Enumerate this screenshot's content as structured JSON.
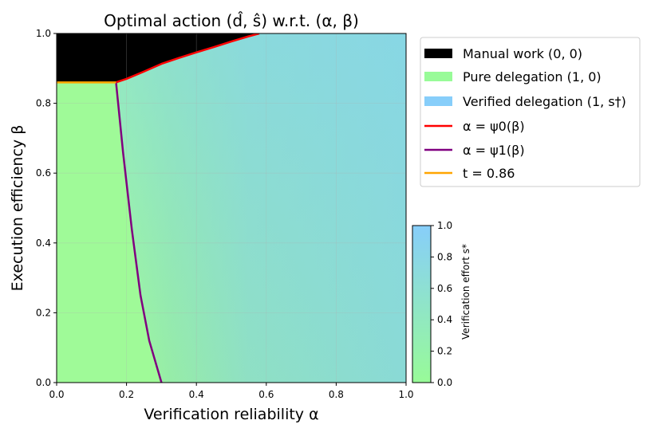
{
  "chart_data": {
    "type": "heatmap",
    "title": "Optimal action (d̂, ŝ) w.r.t. (α, β)",
    "xlabel": "Verification reliability α",
    "ylabel": "Execution efficiency β",
    "xlim": [
      0.0,
      1.0
    ],
    "ylim": [
      0.0,
      1.0
    ],
    "xticks": [
      "0.0",
      "0.2",
      "0.4",
      "0.6",
      "0.8",
      "1.0"
    ],
    "yticks": [
      "0.0",
      "0.2",
      "0.4",
      "0.6",
      "0.8",
      "1.0"
    ],
    "grid": true,
    "regions": [
      {
        "name": "Manual work (0, 0)",
        "color": "#000000"
      },
      {
        "name": "Pure delegation (1, 0)",
        "color": "#98fb98"
      },
      {
        "name": "Verified delegation (1, s†)",
        "color": "#87cefa"
      }
    ],
    "series": [
      {
        "name": "α = ψ0(β)",
        "color": "#ff0000",
        "x": [
          0.17,
          0.2,
          0.25,
          0.3,
          0.35,
          0.4,
          0.45,
          0.5,
          0.55,
          0.58
        ],
        "y": [
          0.86,
          0.87,
          0.891,
          0.913,
          0.93,
          0.946,
          0.961,
          0.977,
          0.992,
          1.0
        ]
      },
      {
        "name": "α = ψ1(β)",
        "color": "#800080",
        "x": [
          0.17,
          0.19,
          0.215,
          0.24,
          0.265,
          0.3
        ],
        "y": [
          0.86,
          0.66,
          0.44,
          0.25,
          0.12,
          0.0
        ]
      },
      {
        "name": "t = 0.86",
        "color": "#ffa500",
        "x": [
          0.0,
          0.17
        ],
        "y": [
          0.86,
          0.86
        ]
      }
    ],
    "colorbar": {
      "label": "Verification effort s*",
      "range": [
        0.0,
        1.0
      ],
      "ticks": [
        "0.0",
        "0.2",
        "0.4",
        "0.6",
        "0.8",
        "1.0"
      ],
      "color_low": "#98fb98",
      "color_high": "#87cefa"
    },
    "legend_position": "outside-top-right"
  }
}
